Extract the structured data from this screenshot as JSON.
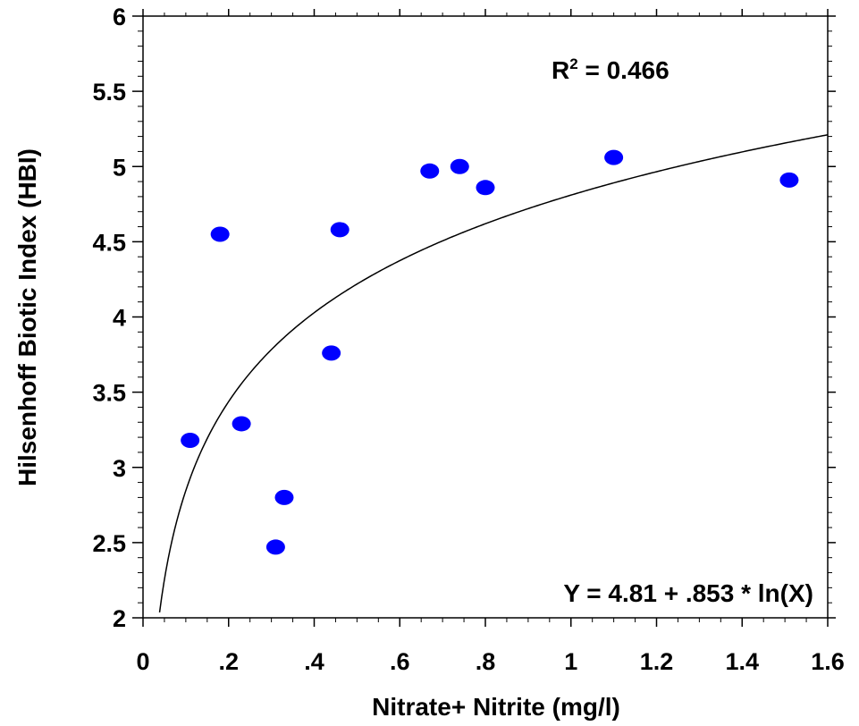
{
  "chart_data": {
    "type": "scatter",
    "xlabel": "Nitrate+ Nitrite (mg/l)",
    "ylabel": "Hilsenhoff Biotic Index (HBI)",
    "xlim": [
      0,
      1.6
    ],
    "ylim": [
      2,
      6
    ],
    "x_ticks": [
      {
        "value": 0,
        "label": "0"
      },
      {
        "value": 0.2,
        "label": ".2"
      },
      {
        "value": 0.4,
        "label": ".4"
      },
      {
        "value": 0.6,
        "label": ".6"
      },
      {
        "value": 0.8,
        "label": ".8"
      },
      {
        "value": 1.0,
        "label": "1"
      },
      {
        "value": 1.2,
        "label": "1.2"
      },
      {
        "value": 1.4,
        "label": "1.4"
      },
      {
        "value": 1.6,
        "label": "1.6"
      }
    ],
    "y_ticks": [
      {
        "value": 2,
        "label": "2"
      },
      {
        "value": 2.5,
        "label": "2.5"
      },
      {
        "value": 3,
        "label": "3"
      },
      {
        "value": 3.5,
        "label": "3.5"
      },
      {
        "value": 4,
        "label": "4"
      },
      {
        "value": 4.5,
        "label": "4.5"
      },
      {
        "value": 5,
        "label": "5"
      },
      {
        "value": 5.5,
        "label": "5.5"
      },
      {
        "value": 6,
        "label": "6"
      }
    ],
    "points": [
      {
        "x": 0.11,
        "y": 3.18
      },
      {
        "x": 0.18,
        "y": 4.55
      },
      {
        "x": 0.23,
        "y": 3.29
      },
      {
        "x": 0.31,
        "y": 2.47
      },
      {
        "x": 0.33,
        "y": 2.8
      },
      {
        "x": 0.44,
        "y": 3.76
      },
      {
        "x": 0.46,
        "y": 4.58
      },
      {
        "x": 0.67,
        "y": 4.97
      },
      {
        "x": 0.74,
        "y": 5.0
      },
      {
        "x": 0.8,
        "y": 4.86
      },
      {
        "x": 1.1,
        "y": 5.06
      },
      {
        "x": 1.51,
        "y": 4.91
      }
    ],
    "fit": {
      "intercept": 4.81,
      "slope": 0.853,
      "model": "log"
    },
    "r_squared_label": "R",
    "r_squared_exp": "2",
    "r_squared_value": " = 0.466",
    "equation": "Y = 4.81 + .853 * ln(X)",
    "point_color": "#0000ff",
    "line_color": "#000000",
    "grid": false
  }
}
